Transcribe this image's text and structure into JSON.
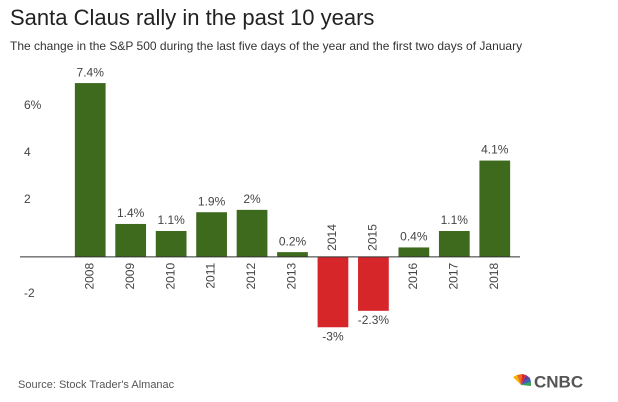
{
  "chart_data": {
    "type": "bar",
    "title": "Santa Claus rally in the past 10 years",
    "subtitle": "The change in the S&P 500 during the last five days of the year and the first two days of January",
    "source": "Source: Stock Trader's Almanac",
    "logo": "CNBC",
    "categories": [
      "2008",
      "2009",
      "2010",
      "2011",
      "2012",
      "2013",
      "2014",
      "2015",
      "2016",
      "2017",
      "2018"
    ],
    "values": [
      7.4,
      1.4,
      1.1,
      1.9,
      2,
      0.2,
      -3,
      -2.3,
      0.4,
      1.1,
      4.1
    ],
    "value_labels": [
      "7.4%",
      "1.4%",
      "1.1%",
      "1.9%",
      "2%",
      "0.2%",
      "-3%",
      "-2.3%",
      "0.4%",
      "1.1%",
      "4.1%"
    ],
    "positive_color": "#3e6a1d",
    "negative_color": "#d7262a",
    "ylim": [
      -3.5,
      8
    ],
    "yticks": [
      -2,
      2,
      4,
      {
        "value": 6,
        "label": "6%"
      }
    ],
    "grid": false
  }
}
